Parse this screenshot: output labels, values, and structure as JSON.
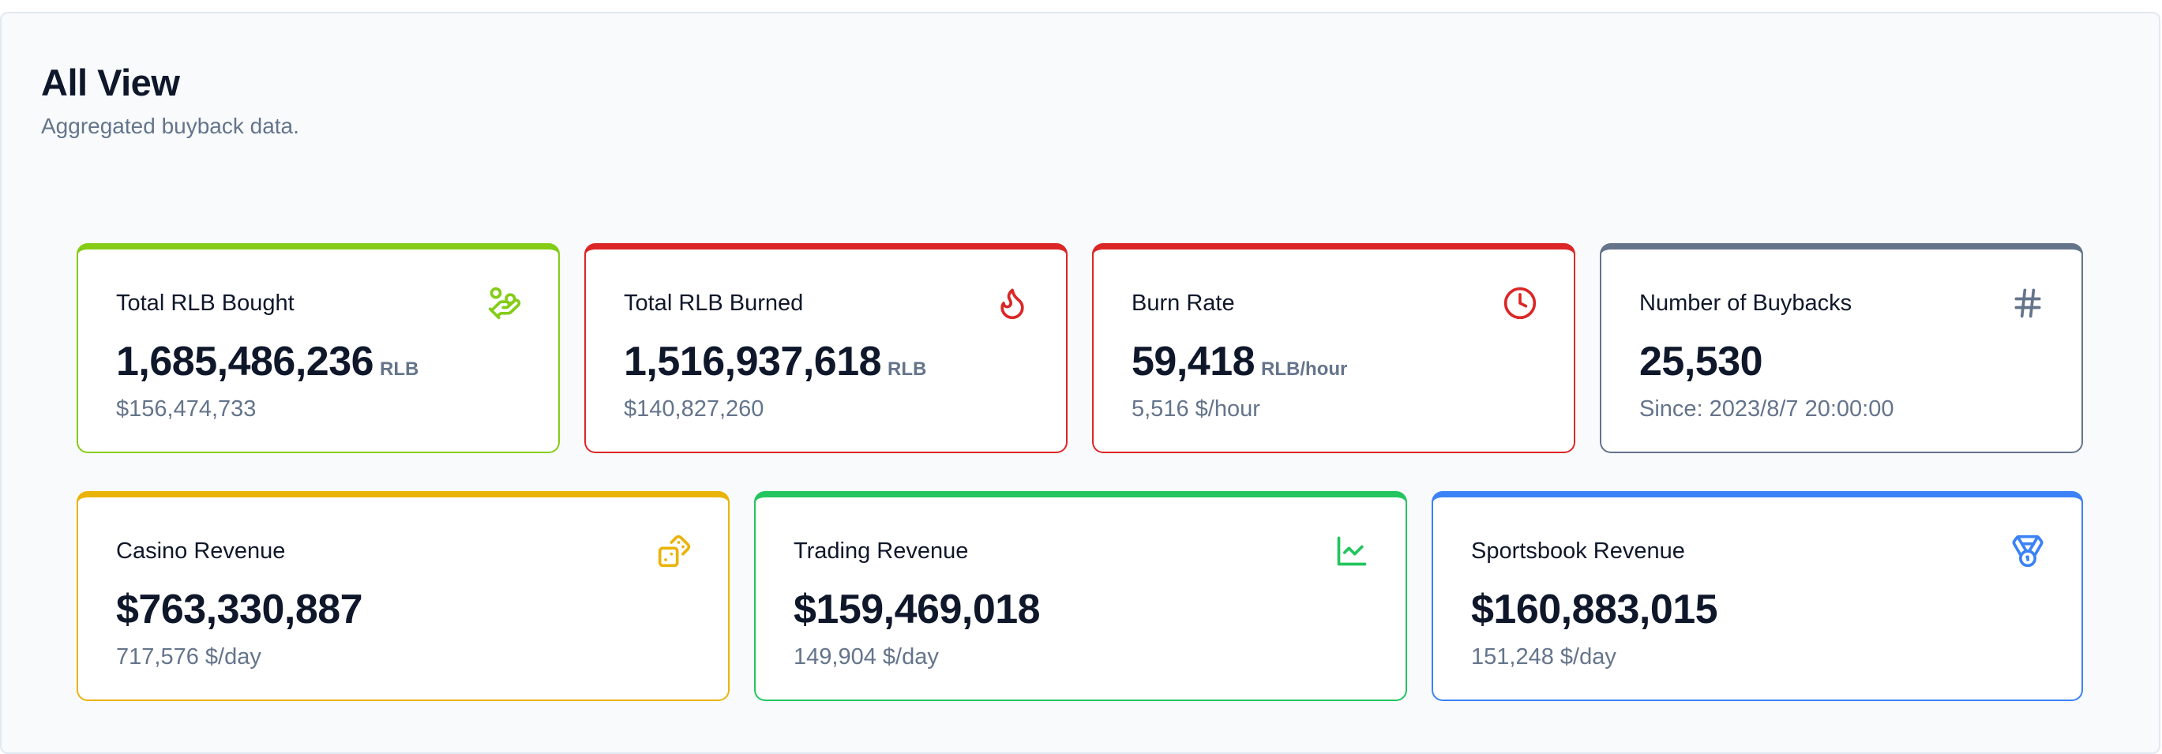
{
  "header": {
    "title": "All View",
    "subtitle": "Aggregated buyback data."
  },
  "colors": {
    "green": "#84cc16",
    "red": "#dc2626",
    "slate": "#64748b",
    "amber": "#eab308",
    "emerald": "#22c55e",
    "blue": "#3b82f6"
  },
  "cards": [
    {
      "label": "Total RLB Bought",
      "value": "1,685,486,236",
      "unit": "RLB",
      "sub": "$156,474,733",
      "icon": "hand-coins-icon"
    },
    {
      "label": "Total RLB Burned",
      "value": "1,516,937,618",
      "unit": "RLB",
      "sub": "$140,827,260",
      "icon": "flame-icon"
    },
    {
      "label": "Burn Rate",
      "value": "59,418",
      "unit": "RLB/hour",
      "sub": "5,516 $/hour",
      "icon": "clock-icon"
    },
    {
      "label": "Number of Buybacks",
      "value": "25,530",
      "unit": "",
      "sub": "Since: 2023/8/7 20:00:00",
      "icon": "hash-icon"
    },
    {
      "label": "Casino Revenue",
      "value": "$763,330,887",
      "unit": "",
      "sub": "717,576 $/day",
      "icon": "dice-icon"
    },
    {
      "label": "Trading Revenue",
      "value": "$159,469,018",
      "unit": "",
      "sub": "149,904 $/day",
      "icon": "line-chart-icon"
    },
    {
      "label": "Sportsbook Revenue",
      "value": "$160,883,015",
      "unit": "",
      "sub": "151,248 $/day",
      "icon": "medal-icon"
    }
  ]
}
